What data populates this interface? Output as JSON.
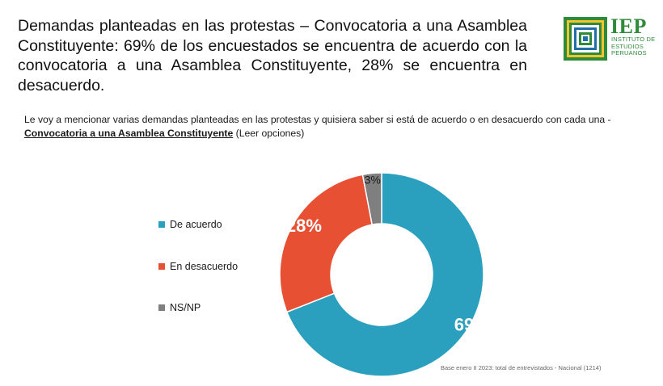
{
  "title": "Demandas planteadas en las protestas – Convocatoria a una Asamblea Constituyente: 69% de los encuestados se encuentra de acuerdo con la convocatoria a una Asamblea Constituyente, 28% se encuentra en desacuerdo.",
  "logo": {
    "word": "IEP",
    "sub": "INSTITUTO DE ESTUDIOS PERUANOS",
    "color": "#2e8b3a"
  },
  "question": {
    "text": "Le voy a mencionar varias demandas planteadas en las protestas y quisiera saber si está de acuerdo o en desacuerdo con cada una - ",
    "bold": "Convocatoria a una Asamblea Constituyente",
    "suffix": " (Leer opciones)"
  },
  "footer": "Base enero II 2023: total de entrevistados - Nacional (1214)",
  "chart_data": {
    "type": "pie",
    "donut": true,
    "categories": [
      "De acuerdo",
      "En desacuerdo",
      "NS/NP"
    ],
    "values": [
      69,
      28,
      3
    ],
    "labels": [
      "69%",
      "28%",
      "3%"
    ],
    "colors": [
      "#2a9fbe",
      "#e85033",
      "#7f7f7f"
    ],
    "legend_position": "left"
  }
}
